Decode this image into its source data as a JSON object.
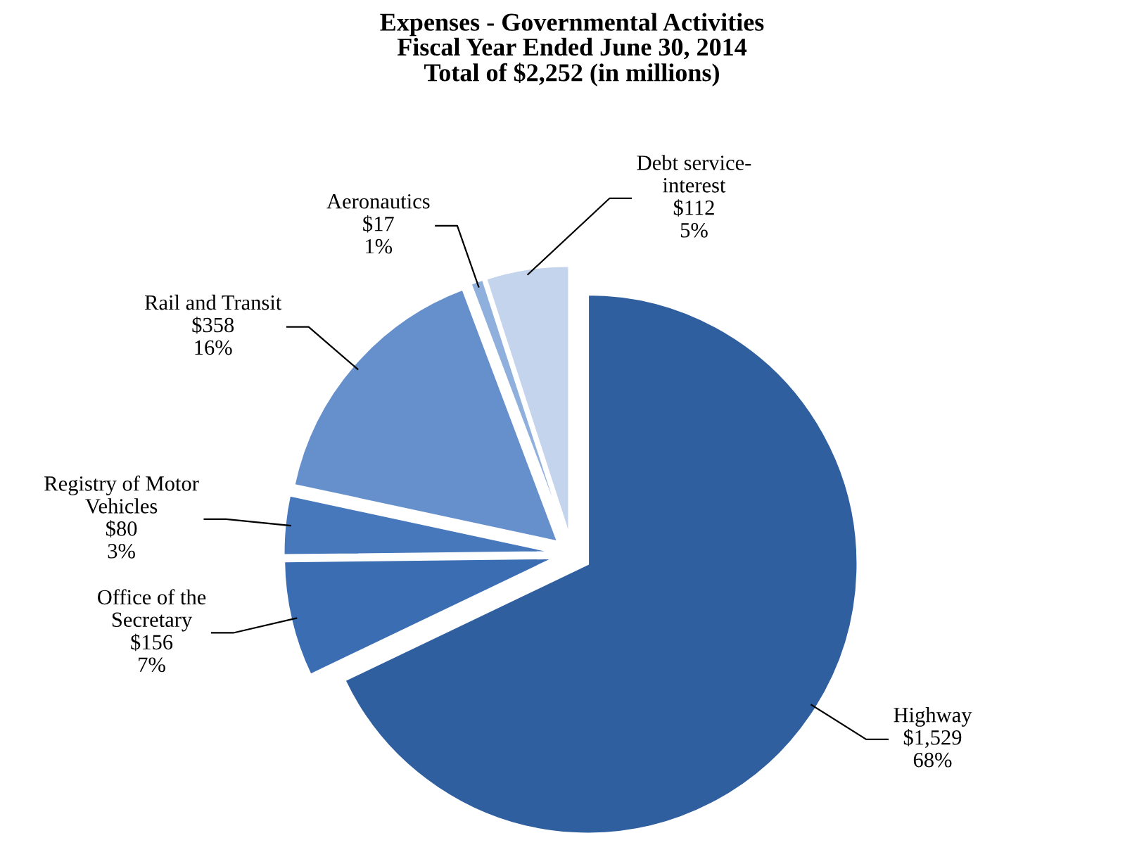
{
  "chart_data": {
    "type": "pie",
    "title": "Expenses - Governmental Activities\nFiscal Year Ended June 30, 2014\nTotal of $2,252 (in millions)",
    "categories": [
      "Highway",
      "Office of the\nSecretary",
      "Registry of Motor\nVehicles",
      "Rail and Transit",
      "Aeronautics",
      "Debt service-\ninterest"
    ],
    "values": [
      1529,
      156,
      80,
      358,
      17,
      112
    ],
    "value_labels": [
      "$1,529\n68%",
      "$156\n7%",
      "$80\n3%",
      "$358\n16%",
      "$17\n1%",
      "$112\n5%"
    ],
    "colors": [
      "#2f5f9f",
      "#3b6db2",
      "#4678bb",
      "#6690cc",
      "#8fb0dc",
      "#c3d4ec"
    ]
  }
}
